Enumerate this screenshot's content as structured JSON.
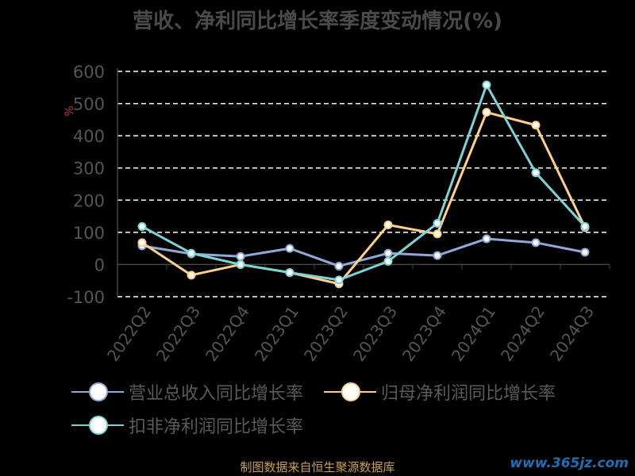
{
  "title": "营收、净利同比增长率季度变动情况(%)",
  "source": "制图数据来自恒生聚源数据库",
  "watermark": "www.365jz.com",
  "chart_data": {
    "type": "line",
    "title": "营收、净利同比增长率季度变动情况(%)",
    "ylabel": "%",
    "categories": [
      "2022Q2",
      "2022Q3",
      "2022Q4",
      "2023Q1",
      "2023Q2",
      "2023Q3",
      "2023Q4",
      "2024Q1",
      "2024Q2",
      "2024Q3"
    ],
    "ylim": [
      -100,
      600
    ],
    "yticks": [
      600,
      500,
      400,
      300,
      200,
      100,
      0,
      -100
    ],
    "grid": true,
    "legend_position": "bottom",
    "series": [
      {
        "name": "营业总收入同比增长率",
        "color": "#8fa9d8",
        "values": [
          58,
          33,
          25,
          50,
          -5,
          35,
          28,
          80,
          68,
          38
        ]
      },
      {
        "name": "归母净利润同比增长率",
        "color": "#ffd08a",
        "values": [
          68,
          -33,
          0,
          -25,
          -60,
          123,
          95,
          473,
          433,
          115
        ]
      },
      {
        "name": "扣非净利润同比增长率",
        "color": "#7dd3d5",
        "values": [
          118,
          35,
          0,
          -25,
          -48,
          10,
          128,
          558,
          285,
          118
        ]
      }
    ]
  }
}
